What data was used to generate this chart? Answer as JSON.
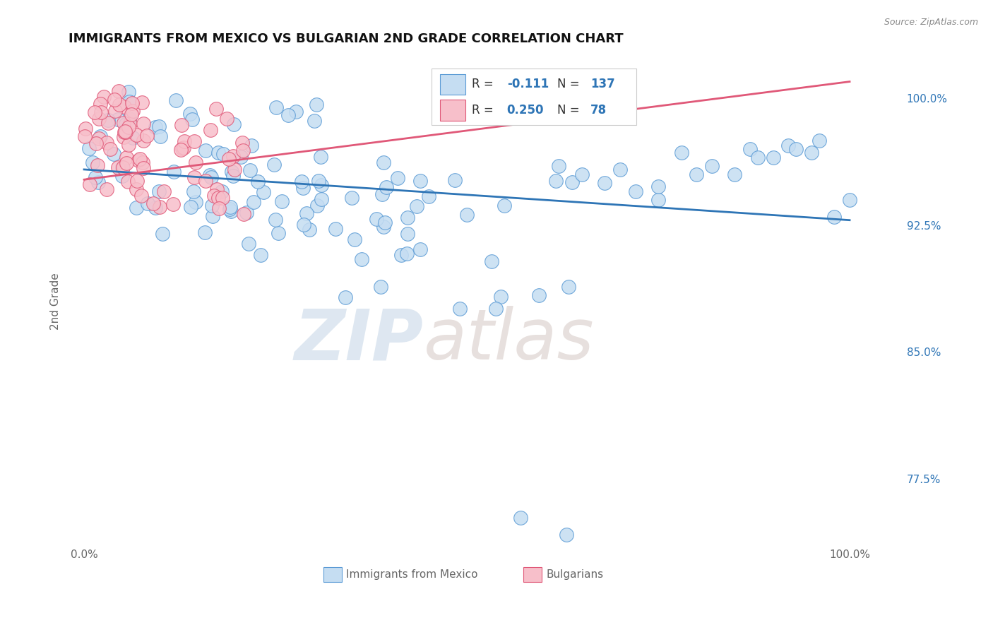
{
  "title": "IMMIGRANTS FROM MEXICO VS BULGARIAN 2ND GRADE CORRELATION CHART",
  "source": "Source: ZipAtlas.com",
  "ylabel": "2nd Grade",
  "legend_blue_label": "Immigrants from Mexico",
  "legend_pink_label": "Bulgarians",
  "blue_R": -0.111,
  "blue_N": 137,
  "pink_R": 0.25,
  "pink_N": 78,
  "blue_color": "#c5ddf2",
  "blue_edge_color": "#5b9bd5",
  "pink_color": "#f7bfca",
  "pink_edge_color": "#e05878",
  "blue_line_color": "#2e75b6",
  "pink_line_color": "#e05878",
  "ymin": 0.735,
  "ymax": 1.025,
  "xmin": -0.02,
  "xmax": 1.07,
  "grid_color": "#cccccc",
  "background_color": "#ffffff",
  "label_color": "#2e75b6",
  "axis_label_color": "#666666"
}
